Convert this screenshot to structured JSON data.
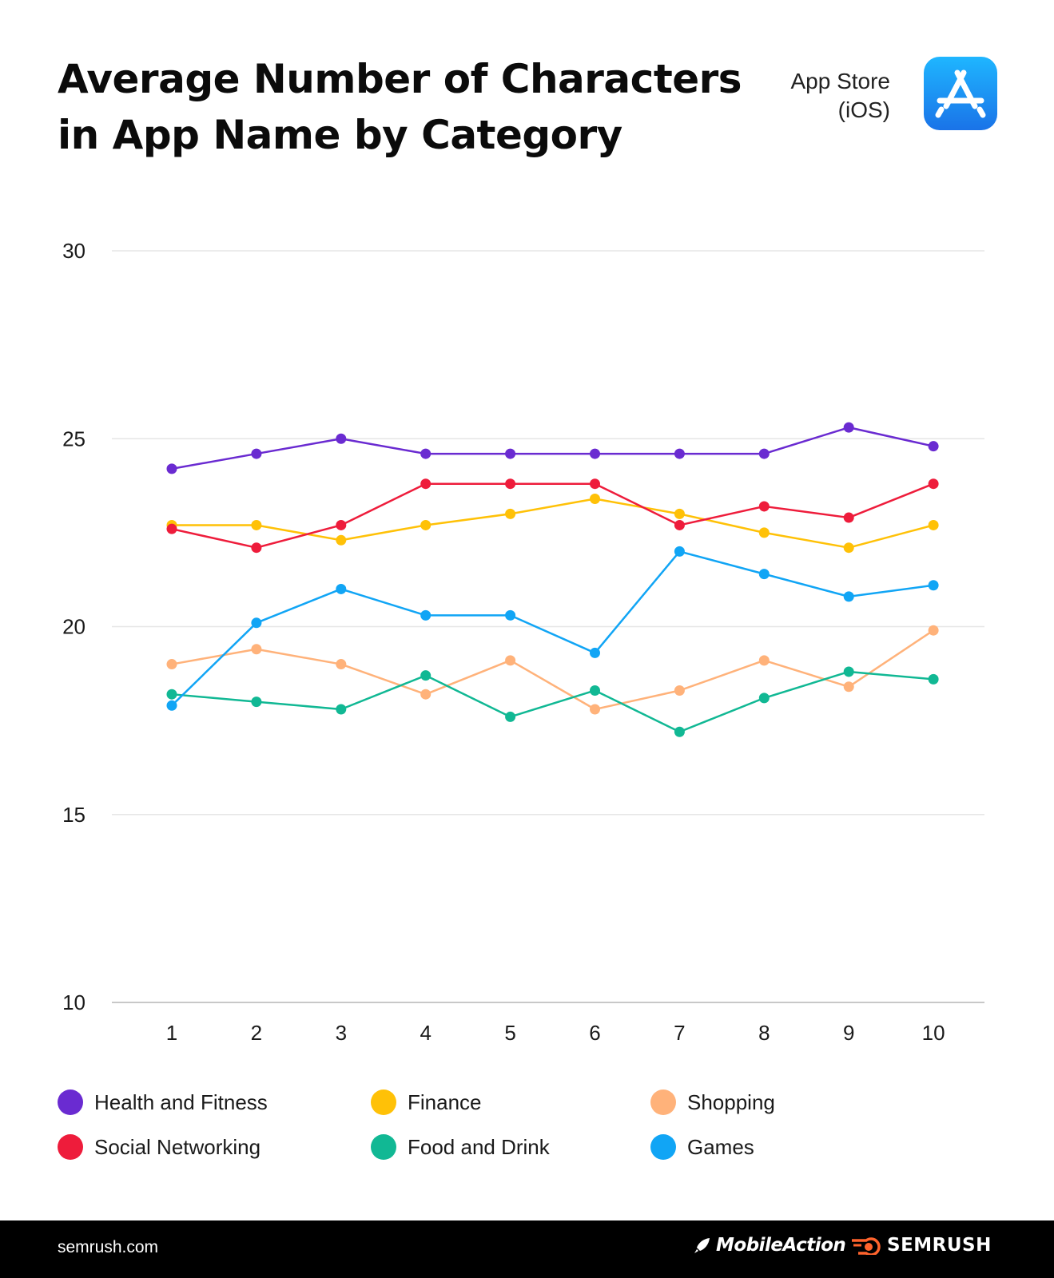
{
  "title_line1": "Average Number of Characters",
  "title_line2": "in App Name by Category",
  "store": {
    "line1": "App Store",
    "line2": "(iOS)",
    "icon": "app-store-icon"
  },
  "chart_data": {
    "type": "line",
    "x": [
      1,
      2,
      3,
      4,
      5,
      6,
      7,
      8,
      9,
      10
    ],
    "ylim": [
      10,
      30
    ],
    "yticks": [
      10,
      15,
      20,
      25,
      30
    ],
    "grid": true,
    "legend_position": "bottom",
    "series": [
      {
        "name": "Health and Fitness",
        "color": "#6a2bd1",
        "values": [
          24.2,
          24.6,
          25.0,
          24.6,
          24.6,
          24.6,
          24.6,
          24.6,
          25.3,
          24.8
        ]
      },
      {
        "name": "Finance",
        "color": "#ffc107",
        "values": [
          22.7,
          22.7,
          22.3,
          22.7,
          23.0,
          23.4,
          23.0,
          22.5,
          22.1,
          22.7
        ]
      },
      {
        "name": "Shopping",
        "color": "#ffb27a",
        "values": [
          19.0,
          19.4,
          19.0,
          18.2,
          19.1,
          17.8,
          18.3,
          19.1,
          18.4,
          19.9
        ]
      },
      {
        "name": "Social Networking",
        "color": "#ee1c3b",
        "values": [
          22.6,
          22.1,
          22.7,
          23.8,
          23.8,
          23.8,
          22.7,
          23.2,
          22.9,
          23.8
        ]
      },
      {
        "name": "Food and Drink",
        "color": "#11b894",
        "values": [
          18.2,
          18.0,
          17.8,
          18.7,
          17.6,
          18.3,
          17.2,
          18.1,
          18.8,
          18.6
        ]
      },
      {
        "name": "Games",
        "color": "#11a5f5",
        "values": [
          17.9,
          20.1,
          21.0,
          20.3,
          20.3,
          19.3,
          22.0,
          21.4,
          20.8,
          21.1
        ]
      }
    ]
  },
  "footer": {
    "site": "semrush.com",
    "brand1": "MobileAction",
    "brand2": "SEMRUSH"
  }
}
